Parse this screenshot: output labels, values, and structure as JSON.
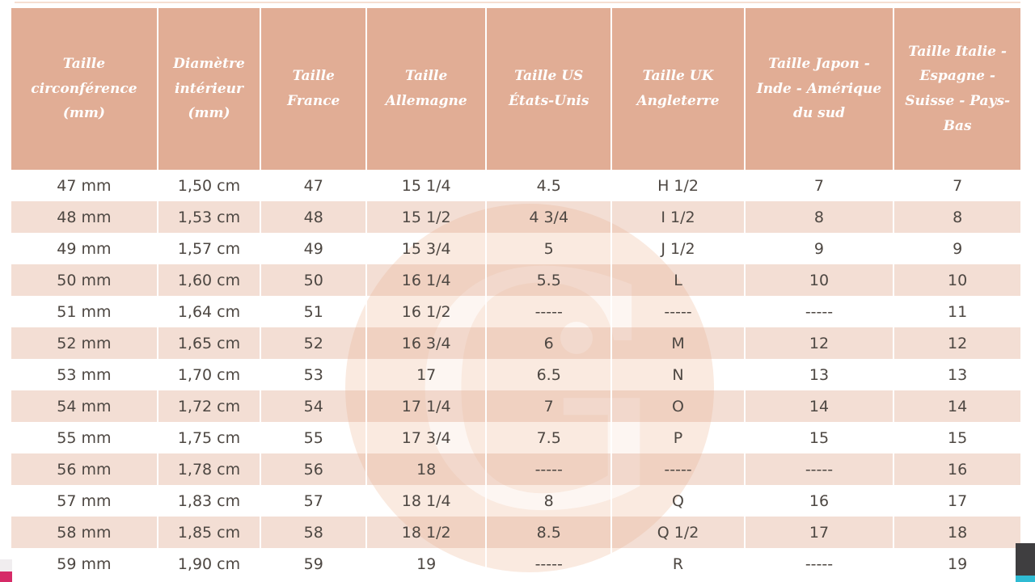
{
  "table": {
    "headers": [
      "Taille circonférence (mm)",
      "Diamètre intérieur (mm)",
      "Taille France",
      "Taille Allemagne",
      "Taille US États-Unis",
      "Taille UK Angleterre",
      "Taille Japon - Inde - Amérique du sud",
      "Taille Italie - Espagne - Suisse - Pays-Bas"
    ],
    "column_widths_percent": [
      14.2,
      10.0,
      10.3,
      11.6,
      12.2,
      12.9,
      14.5,
      12.3
    ],
    "rows": [
      [
        "47 mm",
        "1,50 cm",
        "47",
        "15 1/4",
        "4.5",
        "H 1/2",
        "7",
        "7"
      ],
      [
        "48 mm",
        "1,53 cm",
        "48",
        "15 1/2",
        "4 3/4",
        "I 1/2",
        "8",
        "8"
      ],
      [
        "49 mm",
        "1,57 cm",
        "49",
        "15 3/4",
        "5",
        "J 1/2",
        "9",
        "9"
      ],
      [
        "50 mm",
        "1,60 cm",
        "50",
        "16 1/4",
        "5.5",
        "L",
        "10",
        "10"
      ],
      [
        "51 mm",
        "1,64 cm",
        "51",
        "16 1/2",
        "-----",
        "-----",
        "-----",
        "11"
      ],
      [
        "52 mm",
        "1,65 cm",
        "52",
        "16 3/4",
        "6",
        "M",
        "12",
        "12"
      ],
      [
        "53 mm",
        "1,70 cm",
        "53",
        "17",
        "6.5",
        "N",
        "13",
        "13"
      ],
      [
        "54 mm",
        "1,72 cm",
        "54",
        "17 1/4",
        "7",
        "O",
        "14",
        "14"
      ],
      [
        "55 mm",
        "1,75 cm",
        "55",
        "17 3/4",
        "7.5",
        "P",
        "15",
        "15"
      ],
      [
        "56 mm",
        "1,78 cm",
        "56",
        "18",
        "-----",
        "-----",
        "-----",
        "16"
      ],
      [
        "57 mm",
        "1,83 cm",
        "57",
        "18 1/4",
        "8",
        "Q",
        "16",
        "17"
      ],
      [
        "58 mm",
        "1,85 cm",
        "58",
        "18 1/2",
        "8.5",
        "Q 1/2",
        "17",
        "18"
      ],
      [
        "59 mm",
        "1,90 cm",
        "59",
        "19",
        "-----",
        "R",
        "-----",
        "19"
      ]
    ]
  },
  "watermark": {
    "letter": "G"
  },
  "colors": {
    "header_bg": "#e1ad95",
    "stripe_bg": "#f2ddd1",
    "header_text": "#ffffff",
    "body_text": "#4d4742",
    "watermark_circle": "#f6d8c7",
    "magenta_strip": "#d62a67",
    "cyan_strip": "#2fbbd3",
    "dark_widget": "#3f3e40"
  }
}
